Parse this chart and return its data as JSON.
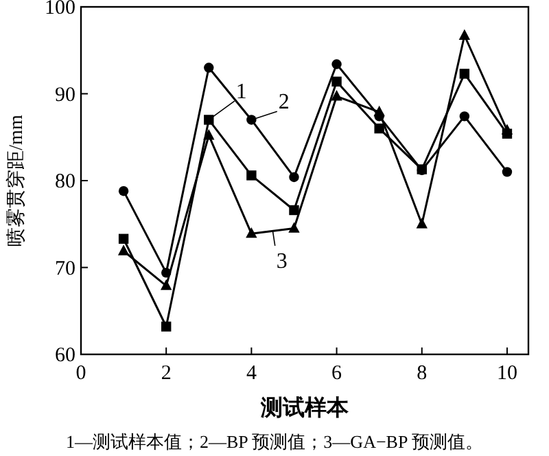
{
  "chart_data": {
    "type": "line",
    "xlabel": "测试样本",
    "ylabel": "喷雾贯穿距/mm",
    "x": [
      1,
      2,
      3,
      4,
      5,
      6,
      7,
      8,
      9,
      10
    ],
    "series": [
      {
        "name": "1",
        "color": "#000000",
        "marker": "square",
        "values": [
          73.3,
          63.2,
          87.0,
          80.6,
          76.6,
          91.4,
          86.0,
          81.3,
          92.3,
          85.4
        ]
      },
      {
        "name": "2",
        "color": "#000000",
        "marker": "circle",
        "values": [
          78.8,
          69.4,
          93.0,
          87.0,
          80.4,
          93.4,
          87.4,
          81.2,
          87.4,
          81.0
        ]
      },
      {
        "name": "3",
        "color": "#000000",
        "marker": "triangle",
        "values": [
          71.9,
          67.9,
          85.2,
          73.9,
          74.5,
          89.7,
          87.9,
          75.0,
          96.7,
          85.8
        ]
      }
    ],
    "xlim": [
      0,
      10.5
    ],
    "xticks": [
      0,
      2,
      4,
      6,
      8,
      10
    ],
    "ylim": [
      60,
      100
    ],
    "yticks": [
      60,
      70,
      80,
      90,
      100
    ],
    "grid": false,
    "line_style": "solid",
    "annotations": [
      "1—测试样本值；2—BP 预测值；3—GA−BP 预测值。"
    ]
  }
}
